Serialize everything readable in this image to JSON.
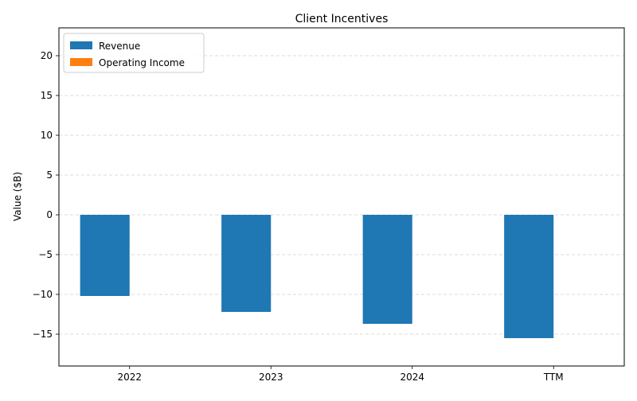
{
  "chart_data": {
    "type": "bar",
    "title": "Client Incentives",
    "xlabel": "",
    "ylabel": "Value ($B)",
    "categories": [
      "2022",
      "2023",
      "2024",
      "TTM"
    ],
    "series": [
      {
        "name": "Revenue",
        "color": "#1f77b4",
        "values": [
          -10.2,
          -12.2,
          -13.7,
          -15.5
        ]
      },
      {
        "name": "Operating Income",
        "color": "#ff7f0e",
        "values": [
          0,
          0,
          0,
          0
        ]
      }
    ],
    "ylim": [
      -19,
      23.5
    ],
    "yticks": [
      -15,
      -10,
      -5,
      0,
      5,
      10,
      15,
      20
    ],
    "ytick_labels": [
      "−15",
      "−10",
      "−5",
      "0",
      "5",
      "10",
      "15",
      "20"
    ],
    "grid": true,
    "legend_position": "upper-left"
  }
}
